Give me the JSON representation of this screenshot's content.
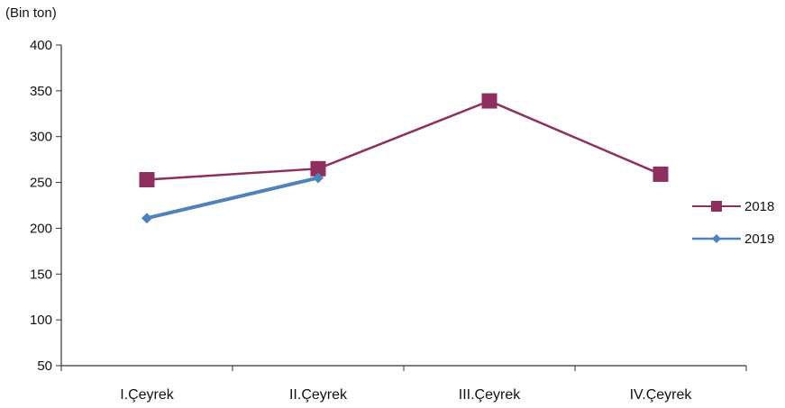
{
  "chart_data": {
    "type": "line",
    "unit_label": "(Bin ton)",
    "categories": [
      "I.Çeyrek",
      "II.Çeyrek",
      "III.Çeyrek",
      "IV.Çeyrek"
    ],
    "ylim": [
      50,
      400
    ],
    "yticks": [
      50,
      100,
      150,
      200,
      250,
      300,
      350,
      400
    ],
    "grid": false,
    "legend_position": "right",
    "series": [
      {
        "name": "2018",
        "values": [
          253,
          265,
          339,
          259
        ],
        "color": "#8e2f5f",
        "marker": "square"
      },
      {
        "name": "2019",
        "values": [
          211,
          255,
          null,
          null
        ],
        "color": "#4f81bd",
        "marker": "diamond"
      }
    ]
  }
}
